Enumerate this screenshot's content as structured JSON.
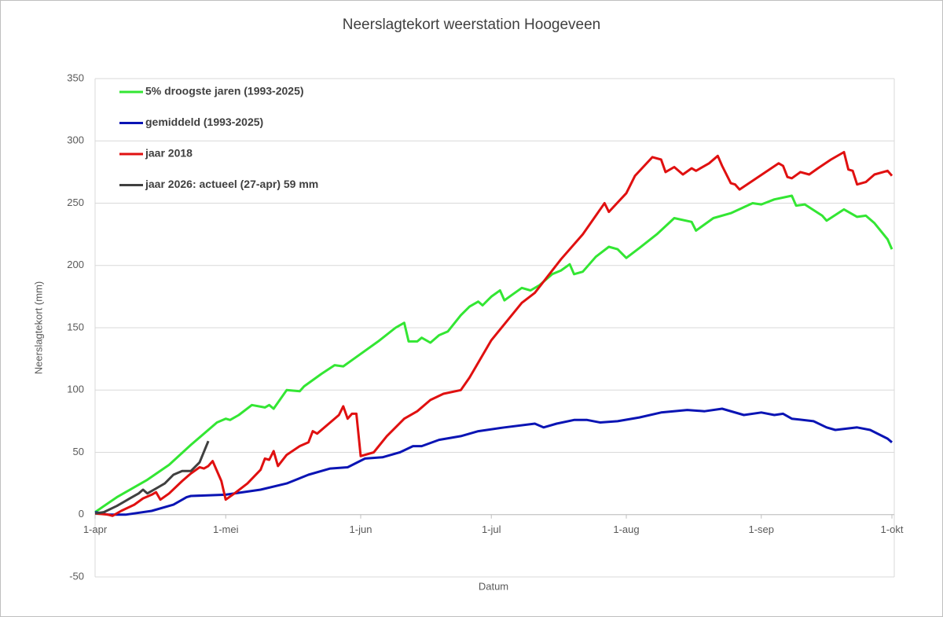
{
  "chart_data": {
    "type": "line",
    "title": "Neerslagtekort weerstation Hoogeveen",
    "x_label": "Datum",
    "y_label": "Neerslagtekort (mm)",
    "xlim": [
      0,
      183
    ],
    "xticks": [
      {
        "value": 0,
        "label": "1-apr"
      },
      {
        "value": 30,
        "label": "1-mei"
      },
      {
        "value": 61,
        "label": "1-jun"
      },
      {
        "value": 91,
        "label": "1-jul"
      },
      {
        "value": 122,
        "label": "1-aug"
      },
      {
        "value": 153,
        "label": "1-sep"
      },
      {
        "value": 183,
        "label": "1-okt"
      }
    ],
    "ylim": [
      -50,
      350
    ],
    "yticks": [
      -50,
      0,
      50,
      100,
      150,
      200,
      250,
      300,
      350
    ],
    "grid": true,
    "legend": "top-left",
    "series": [
      {
        "name": "5% droogste jaren (1993-2025)",
        "color": "#33e633",
        "x": [
          0,
          5,
          12,
          17,
          22,
          28,
          30,
          31,
          33,
          36,
          39,
          40,
          41,
          44,
          47,
          48,
          52,
          55,
          57,
          59,
          65,
          69,
          71,
          72,
          74,
          75,
          77,
          79,
          81,
          84,
          86,
          88,
          89,
          91,
          93,
          94,
          96,
          98,
          100,
          102,
          105,
          107,
          109,
          110,
          112,
          115,
          118,
          120,
          122,
          125,
          129,
          133,
          137,
          138,
          142,
          146,
          151,
          153,
          156,
          160,
          161,
          163,
          167,
          168,
          172,
          175,
          177,
          179,
          182,
          183
        ],
        "values": [
          2,
          14,
          28,
          40,
          56,
          74,
          77,
          76,
          80,
          88,
          86,
          88,
          85,
          100,
          99,
          103,
          113,
          120,
          119,
          124,
          139,
          150,
          154,
          139,
          139,
          142,
          138,
          144,
          147,
          160,
          167,
          171,
          168,
          175,
          180,
          172,
          177,
          182,
          180,
          184,
          193,
          196,
          201,
          193,
          195,
          207,
          215,
          213,
          206,
          214,
          225,
          238,
          235,
          228,
          238,
          242,
          250,
          249,
          253,
          256,
          248,
          249,
          240,
          236,
          245,
          239,
          240,
          234,
          221,
          213
        ]
      },
      {
        "name": "gemiddeld (1993-2025)",
        "color": "#0a14b4",
        "x": [
          0,
          3,
          7,
          13,
          18,
          21,
          22,
          30,
          38,
          44,
          49,
          54,
          58,
          62,
          66,
          70,
          73,
          75,
          79,
          84,
          88,
          94,
          101,
          103,
          106,
          110,
          113,
          116,
          120,
          125,
          130,
          136,
          140,
          144,
          149,
          153,
          156,
          158,
          160,
          165,
          168,
          170,
          175,
          178,
          182,
          183
        ],
        "values": [
          2,
          0,
          0,
          3,
          8,
          14,
          15,
          16,
          20,
          25,
          32,
          37,
          38,
          45,
          46,
          50,
          55,
          55,
          60,
          63,
          67,
          70,
          73,
          70,
          73,
          76,
          76,
          74,
          75,
          78,
          82,
          84,
          83,
          85,
          80,
          82,
          80,
          81,
          77,
          75,
          70,
          68,
          70,
          68,
          61,
          58
        ]
      },
      {
        "name": "jaar 2018",
        "color": "#e01010",
        "x": [
          0,
          3,
          4,
          6,
          9,
          11,
          13,
          14,
          15,
          17,
          20,
          22,
          24,
          25,
          26,
          27,
          29,
          30,
          32,
          35,
          38,
          39,
          40,
          41,
          42,
          44,
          47,
          49,
          50,
          51,
          54,
          56,
          57,
          58,
          59,
          60,
          61,
          64,
          67,
          71,
          74,
          77,
          80,
          84,
          86,
          91,
          98,
          101,
          107,
          112,
          117,
          118,
          122,
          124,
          128,
          130,
          131,
          133,
          135,
          137,
          138,
          141,
          143,
          144,
          146,
          147,
          148,
          151,
          154,
          157,
          158,
          159,
          160,
          162,
          164,
          166,
          169,
          172,
          173,
          174,
          175,
          177,
          179,
          182,
          183
        ],
        "values": [
          1,
          0,
          -1,
          3,
          8,
          13,
          16,
          18,
          12,
          17,
          27,
          33,
          38,
          37,
          39,
          43,
          27,
          12,
          17,
          25,
          36,
          45,
          44,
          51,
          39,
          48,
          55,
          58,
          67,
          65,
          74,
          80,
          87,
          77,
          81,
          81,
          47,
          50,
          63,
          77,
          83,
          92,
          97,
          100,
          110,
          140,
          170,
          178,
          205,
          225,
          250,
          243,
          258,
          272,
          287,
          285,
          275,
          279,
          273,
          278,
          276,
          282,
          288,
          280,
          266,
          265,
          261,
          268,
          275,
          282,
          280,
          271,
          270,
          275,
          273,
          278,
          285,
          291,
          277,
          276,
          265,
          267,
          273,
          276,
          272
        ]
      },
      {
        "name": "jaar 2026: actueel (27-apr) 59 mm",
        "color": "#404040",
        "x": [
          0,
          2,
          5,
          8,
          10,
          11,
          12,
          14,
          16,
          18,
          20,
          22,
          24,
          26
        ],
        "values": [
          1,
          2,
          7,
          13,
          17,
          20,
          17,
          21,
          25,
          32,
          35,
          35,
          42,
          59
        ]
      }
    ]
  }
}
